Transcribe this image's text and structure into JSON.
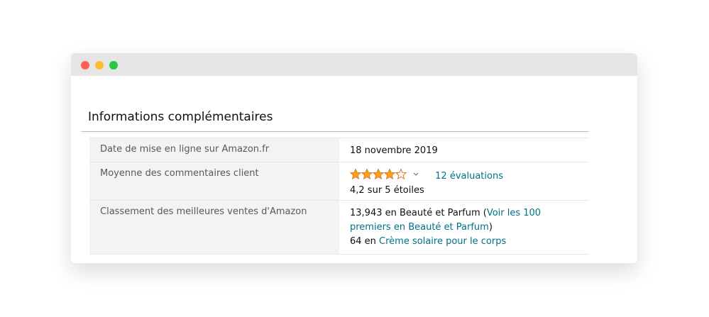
{
  "heading": "Informations complémentaires",
  "table": {
    "rows": [
      {
        "label": "Date de mise en ligne sur Amazon.fr",
        "value": {
          "text": "18 novembre 2019"
        }
      },
      {
        "label": "Moyenne des commentaires client",
        "value": {
          "rating": 4.2,
          "rating_max": 5,
          "count_link": "12 évaluations",
          "summary": "4,2 sur 5 étoiles"
        }
      },
      {
        "label": "Classement des meilleures ventes d'Amazon",
        "value": {
          "lines": [
            [
              {
                "text": "13,943 en Beauté et Parfum ("
              },
              {
                "link": "Voir les 100 premiers en Beauté et Parfum"
              },
              {
                "text": ")"
              }
            ],
            [
              {
                "text": "64 en "
              },
              {
                "link": "Crème solaire pour le corps"
              }
            ]
          ]
        }
      }
    ]
  }
}
